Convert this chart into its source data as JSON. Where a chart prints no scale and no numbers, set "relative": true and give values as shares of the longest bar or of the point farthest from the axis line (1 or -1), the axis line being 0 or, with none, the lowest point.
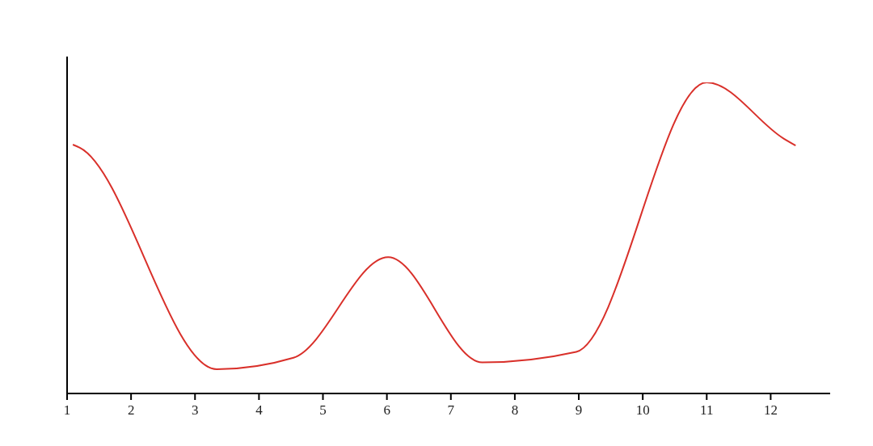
{
  "chart_data": {
    "type": "line",
    "relative": true,
    "x": [
      1.09,
      1.2,
      3.34,
      4.54,
      6.02,
      7.49,
      8.96,
      11,
      12.2,
      12.39
    ],
    "values": [
      0.8,
      0.79,
      0.078,
      0.115,
      0.438,
      0.1,
      0.134,
      1,
      0.82,
      0.797
    ],
    "color": "#d9302a",
    "xlim": [
      1,
      12.93
    ],
    "xticks": [
      1,
      2,
      3,
      4,
      5,
      6,
      7,
      8,
      9,
      10,
      11,
      12
    ],
    "grid": false,
    "legend": false
  }
}
